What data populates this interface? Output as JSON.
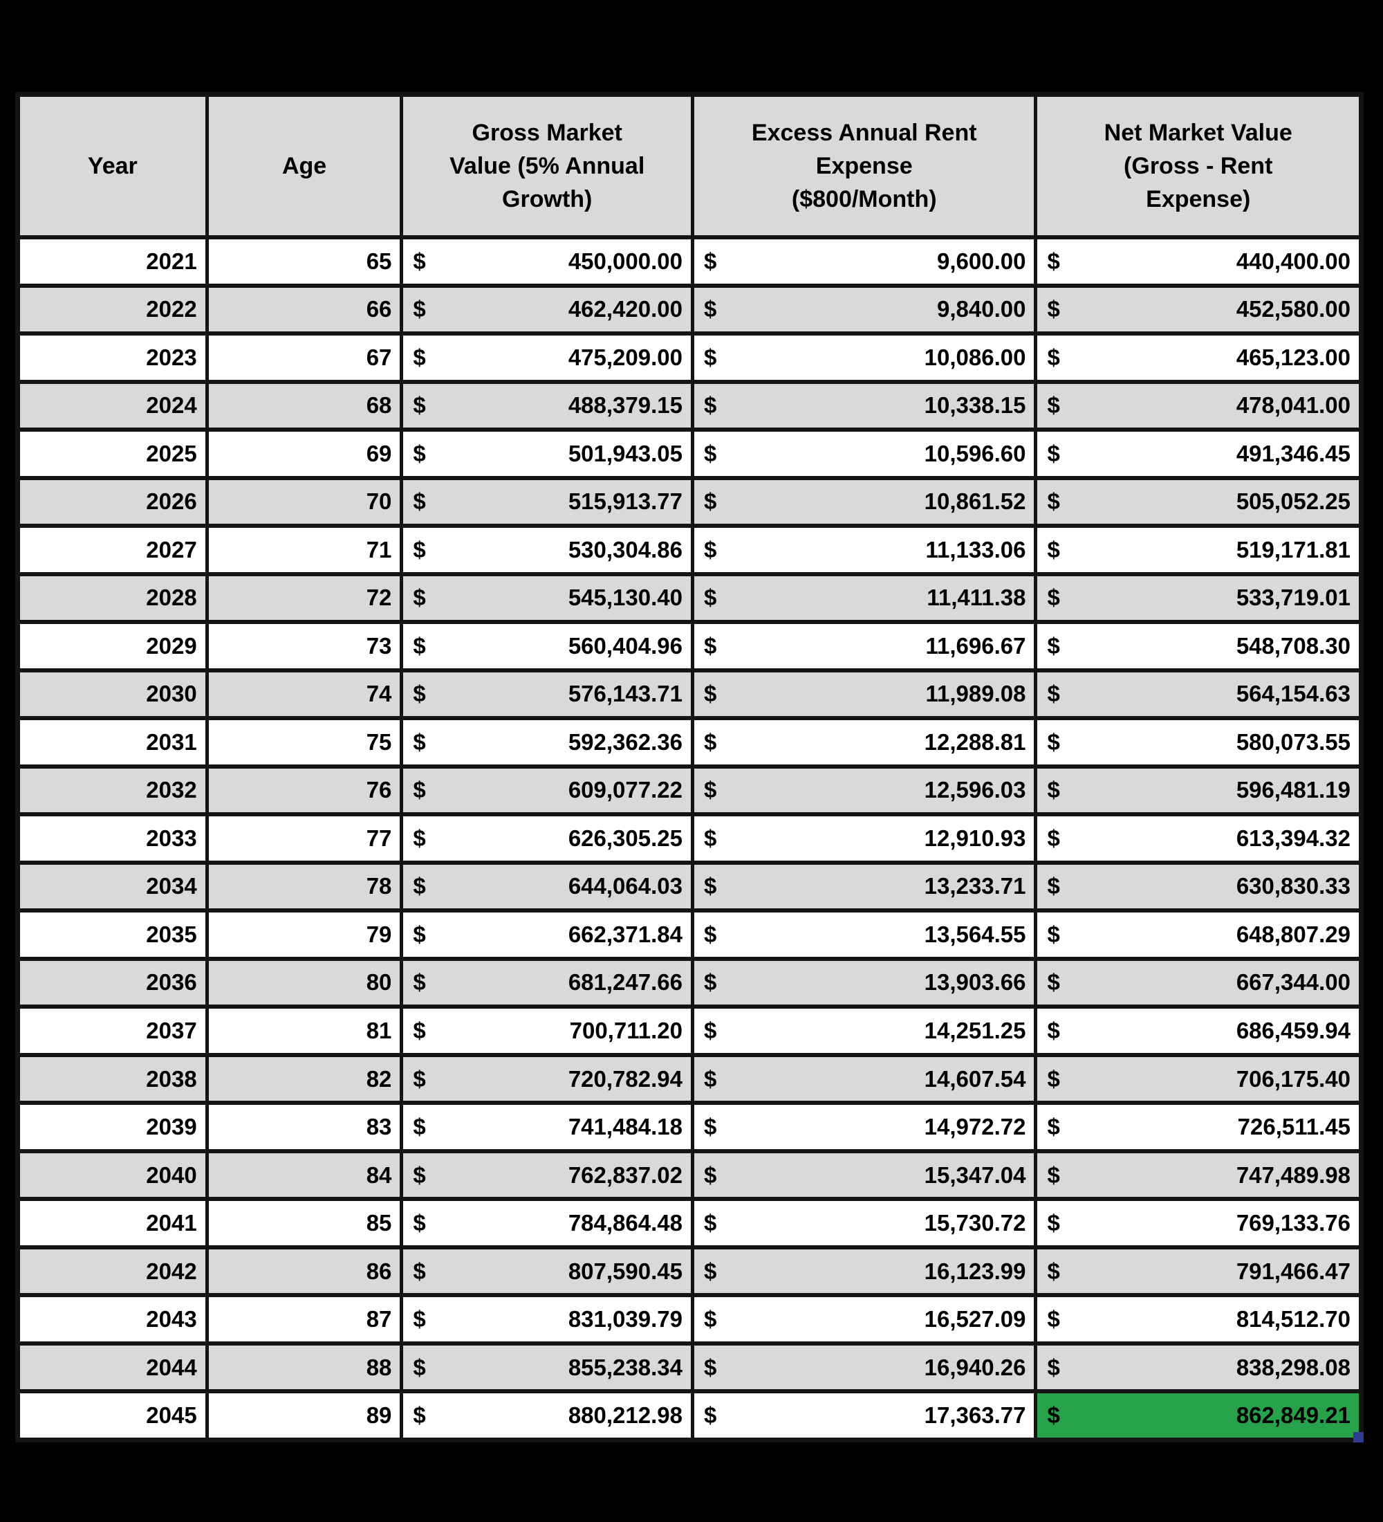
{
  "styles": {
    "page_bg": "#000000",
    "grid_line": "#141414",
    "header_bg": "#d9d9d9",
    "row_bg": "#ffffff",
    "row_alt_bg": "#d9d9d9",
    "highlight_green": "#27a24b",
    "fill_handle_blue": "#2e3d94"
  },
  "chart_data": {
    "type": "table",
    "title": "",
    "currency_symbol": "$",
    "columns": [
      "Year",
      "Age",
      "Gross Market\nValue (5% Annual\nGrowth)",
      "Excess Annual Rent\nExpense\n($800/Month)",
      "Net Market Value\n(Gross - Rent\nExpense)"
    ],
    "layout": {
      "alternating_row_shading": true,
      "header_position": "top",
      "highlight": {
        "year": "2045",
        "column_key": "net",
        "color": "#27a24b"
      }
    },
    "highlight": {
      "year": "2045",
      "column_key": "net",
      "color": "#27a24b"
    },
    "rows": [
      {
        "year": "2021",
        "age": "65",
        "gross": "450,000.00",
        "rent": "9,600.00",
        "net": "440,400.00"
      },
      {
        "year": "2022",
        "age": "66",
        "gross": "462,420.00",
        "rent": "9,840.00",
        "net": "452,580.00"
      },
      {
        "year": "2023",
        "age": "67",
        "gross": "475,209.00",
        "rent": "10,086.00",
        "net": "465,123.00"
      },
      {
        "year": "2024",
        "age": "68",
        "gross": "488,379.15",
        "rent": "10,338.15",
        "net": "478,041.00"
      },
      {
        "year": "2025",
        "age": "69",
        "gross": "501,943.05",
        "rent": "10,596.60",
        "net": "491,346.45"
      },
      {
        "year": "2026",
        "age": "70",
        "gross": "515,913.77",
        "rent": "10,861.52",
        "net": "505,052.25"
      },
      {
        "year": "2027",
        "age": "71",
        "gross": "530,304.86",
        "rent": "11,133.06",
        "net": "519,171.81"
      },
      {
        "year": "2028",
        "age": "72",
        "gross": "545,130.40",
        "rent": "11,411.38",
        "net": "533,719.01"
      },
      {
        "year": "2029",
        "age": "73",
        "gross": "560,404.96",
        "rent": "11,696.67",
        "net": "548,708.30"
      },
      {
        "year": "2030",
        "age": "74",
        "gross": "576,143.71",
        "rent": "11,989.08",
        "net": "564,154.63"
      },
      {
        "year": "2031",
        "age": "75",
        "gross": "592,362.36",
        "rent": "12,288.81",
        "net": "580,073.55"
      },
      {
        "year": "2032",
        "age": "76",
        "gross": "609,077.22",
        "rent": "12,596.03",
        "net": "596,481.19"
      },
      {
        "year": "2033",
        "age": "77",
        "gross": "626,305.25",
        "rent": "12,910.93",
        "net": "613,394.32"
      },
      {
        "year": "2034",
        "age": "78",
        "gross": "644,064.03",
        "rent": "13,233.71",
        "net": "630,830.33"
      },
      {
        "year": "2035",
        "age": "79",
        "gross": "662,371.84",
        "rent": "13,564.55",
        "net": "648,807.29"
      },
      {
        "year": "2036",
        "age": "80",
        "gross": "681,247.66",
        "rent": "13,903.66",
        "net": "667,344.00"
      },
      {
        "year": "2037",
        "age": "81",
        "gross": "700,711.20",
        "rent": "14,251.25",
        "net": "686,459.94"
      },
      {
        "year": "2038",
        "age": "82",
        "gross": "720,782.94",
        "rent": "14,607.54",
        "net": "706,175.40"
      },
      {
        "year": "2039",
        "age": "83",
        "gross": "741,484.18",
        "rent": "14,972.72",
        "net": "726,511.45"
      },
      {
        "year": "2040",
        "age": "84",
        "gross": "762,837.02",
        "rent": "15,347.04",
        "net": "747,489.98"
      },
      {
        "year": "2041",
        "age": "85",
        "gross": "784,864.48",
        "rent": "15,730.72",
        "net": "769,133.76"
      },
      {
        "year": "2042",
        "age": "86",
        "gross": "807,590.45",
        "rent": "16,123.99",
        "net": "791,466.47"
      },
      {
        "year": "2043",
        "age": "87",
        "gross": "831,039.79",
        "rent": "16,527.09",
        "net": "814,512.70"
      },
      {
        "year": "2044",
        "age": "88",
        "gross": "855,238.34",
        "rent": "16,940.26",
        "net": "838,298.08"
      },
      {
        "year": "2045",
        "age": "89",
        "gross": "880,212.98",
        "rent": "17,363.77",
        "net": "862,849.21"
      }
    ]
  }
}
